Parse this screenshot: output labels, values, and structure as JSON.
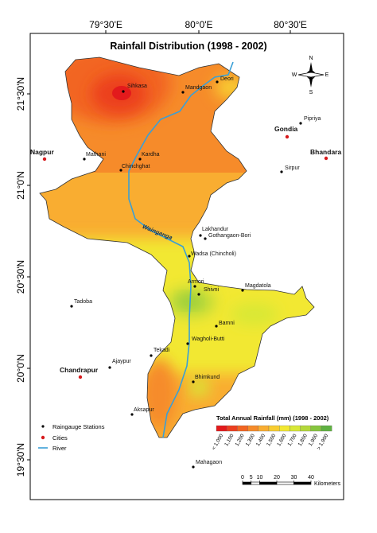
{
  "title": "Rainfall Distribution (1998 - 2002)",
  "graticule": {
    "longitudes": [
      "79°30'E",
      "80°0'E",
      "80°30'E"
    ],
    "latitudes": [
      "21°30'N",
      "21°0'N",
      "20°30'N",
      "20°0'N",
      "19°30'N"
    ]
  },
  "compass": {
    "n": "N",
    "s": "S",
    "e": "E",
    "w": "W"
  },
  "river_name": "Wainganga",
  "stations": [
    "Sihkasa",
    "Mandgaon",
    "Deori",
    "Pipriya",
    "Sirpur",
    "Mathani",
    "Kardha",
    "Chinchghat",
    "Lakhandur",
    "Gothangaon-Bori",
    "Wadsa (Chincholi)",
    "Armori",
    "Shivni",
    "Magdatola",
    "Tadoba",
    "Bamni",
    "Wagholi-Butti",
    "Tekadi",
    "Ajaypur",
    "Bhimkund",
    "Aksapur",
    "Mahagaon"
  ],
  "cities": [
    "Nagpur",
    "Gondia",
    "Bhandara",
    "Chandrapur"
  ],
  "legend": {
    "station": "Raingauge Stations",
    "city": "Cities",
    "river": "River"
  },
  "rainfall_legend": {
    "title": "Total Annual Rainfall  (mm) (1998 - 2002)",
    "classes": [
      "< 1,000",
      "1,100",
      "1,200",
      "1,300",
      "1,400",
      "1,500",
      "1,600",
      "1,700",
      "1,800",
      "1,900",
      "> 1,900"
    ],
    "colors": [
      "#e31a1c",
      "#ec3f1f",
      "#f26522",
      "#f68b2a",
      "#f9ad31",
      "#f8cd30",
      "#f2e832",
      "#d8e836",
      "#b3d83a",
      "#86c53e",
      "#5fb141"
    ]
  },
  "scale": {
    "ticks": [
      0,
      5,
      10,
      20,
      30,
      40
    ],
    "unit": "Kilometers"
  }
}
